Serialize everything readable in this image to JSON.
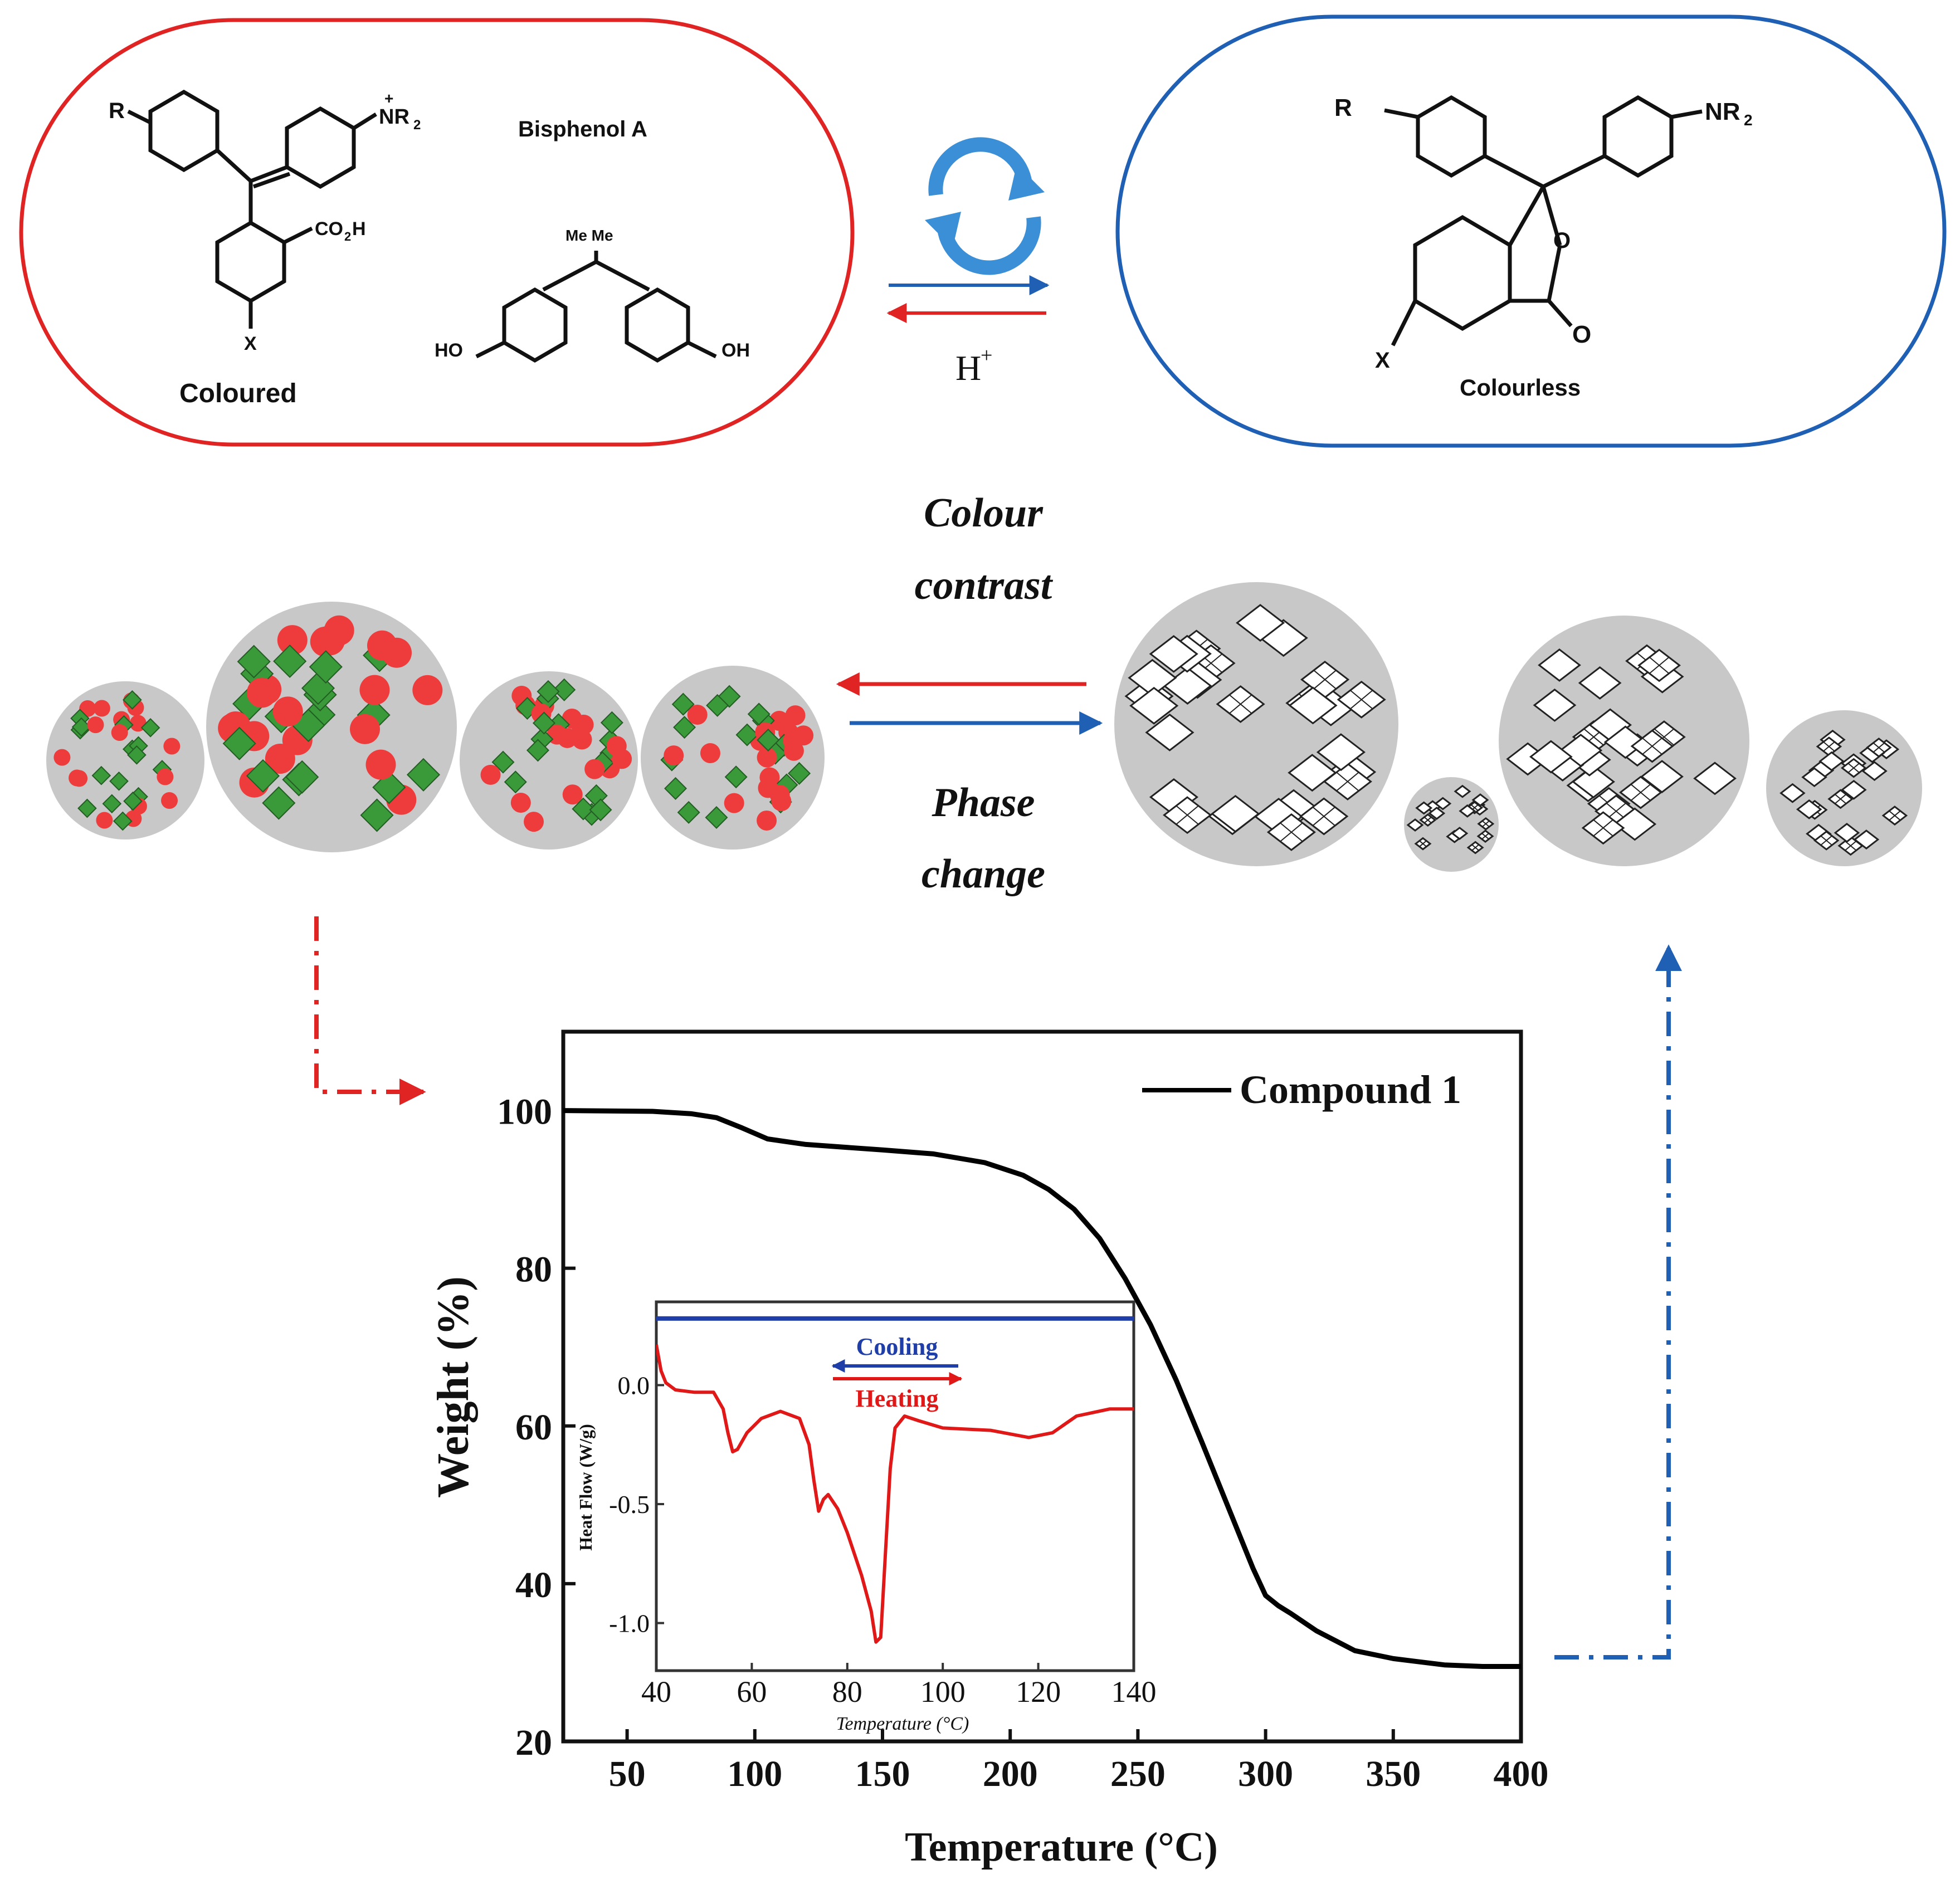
{
  "colors": {
    "coloured_border": "#e02424",
    "colourless_border": "#1f5fb4",
    "red_mark": "#ee3c3c",
    "green_mark": "#3a9a3a",
    "grey_particle": "#c8c8c8",
    "cooling_line": "#1f3ea8",
    "heating_line": "#e01818",
    "tga_line": "#000000",
    "refresh_icon": "#3b8fd6"
  },
  "scheme": {
    "coloured_label": "Coloured",
    "bisphenol_label": "Bisphenol A",
    "colourless_label": "Colourless",
    "acid_label": "H",
    "acid_superscript": "+",
    "r_label": "R",
    "x_label": "X",
    "nr2_label": "NR",
    "nr2_sub": "2",
    "nr2_plus": "+",
    "co2h_label": "CO",
    "co2h_sub": "2",
    "co2h_h": "H",
    "me_label": "Me Me",
    "ho_label": "HO",
    "oh_label": "OH",
    "o_label": "O",
    "o_ring_label": "O",
    "icon": "refresh-cycle-icon"
  },
  "middle_labels": {
    "line1": "Colour",
    "line2": "contrast",
    "line3": "Phase",
    "line4": "change"
  },
  "chart_data": [
    {
      "type": "line",
      "xlabel": "Temperature (°C)",
      "ylabel": "Weight (%)",
      "xlim": [
        25,
        400
      ],
      "ylim": [
        20,
        110
      ],
      "xticks": [
        50,
        100,
        150,
        200,
        250,
        300,
        350,
        400
      ],
      "yticks": [
        20,
        40,
        60,
        80,
        100
      ],
      "legend_position": "top-right",
      "series": [
        {
          "name": "Compound 1",
          "x": [
            25,
            60,
            75,
            85,
            95,
            105,
            120,
            150,
            170,
            190,
            205,
            215,
            225,
            235,
            245,
            255,
            265,
            275,
            285,
            295,
            300,
            305,
            310,
            320,
            335,
            350,
            370,
            385,
            400
          ],
          "y": [
            100,
            99.9,
            99.6,
            99.1,
            97.8,
            96.4,
            95.7,
            95.0,
            94.5,
            93.4,
            91.8,
            90.0,
            87.5,
            83.8,
            78.7,
            72.8,
            65.8,
            58.0,
            50.0,
            42.0,
            38.5,
            37.2,
            36.2,
            34.0,
            31.5,
            30.5,
            29.7,
            29.5,
            29.5
          ]
        }
      ]
    },
    {
      "type": "line",
      "xlabel": "Temperature (°C)",
      "ylabel": "Heat Flow (W/g)",
      "xlim": [
        40,
        140
      ],
      "ylim": [
        -1.2,
        0.35
      ],
      "xticks": [
        40,
        60,
        80,
        100,
        120,
        140
      ],
      "yticks": [
        0.0,
        -0.5,
        -1.0
      ],
      "series": [
        {
          "name": "Cooling",
          "x": [
            40,
            140
          ],
          "y": [
            0.28,
            0.28
          ]
        },
        {
          "name": "Heating",
          "x": [
            40,
            41,
            42,
            44,
            48,
            52,
            54,
            55,
            56,
            57,
            59,
            62,
            66,
            70,
            72,
            73,
            74,
            75,
            76,
            78,
            80,
            83,
            85,
            86,
            87,
            88,
            89,
            90,
            92,
            95,
            100,
            110,
            118,
            123,
            128,
            135,
            140
          ],
          "y": [
            0.17,
            0.06,
            0.01,
            -0.02,
            -0.03,
            -0.03,
            -0.1,
            -0.2,
            -0.28,
            -0.27,
            -0.2,
            -0.14,
            -0.11,
            -0.14,
            -0.25,
            -0.4,
            -0.53,
            -0.48,
            -0.46,
            -0.52,
            -0.62,
            -0.8,
            -0.95,
            -1.08,
            -1.06,
            -0.7,
            -0.35,
            -0.18,
            -0.13,
            -0.15,
            -0.18,
            -0.19,
            -0.22,
            -0.2,
            -0.13,
            -0.1,
            -0.1
          ]
        }
      ],
      "annotations": [
        "Cooling",
        "Heating"
      ]
    }
  ]
}
